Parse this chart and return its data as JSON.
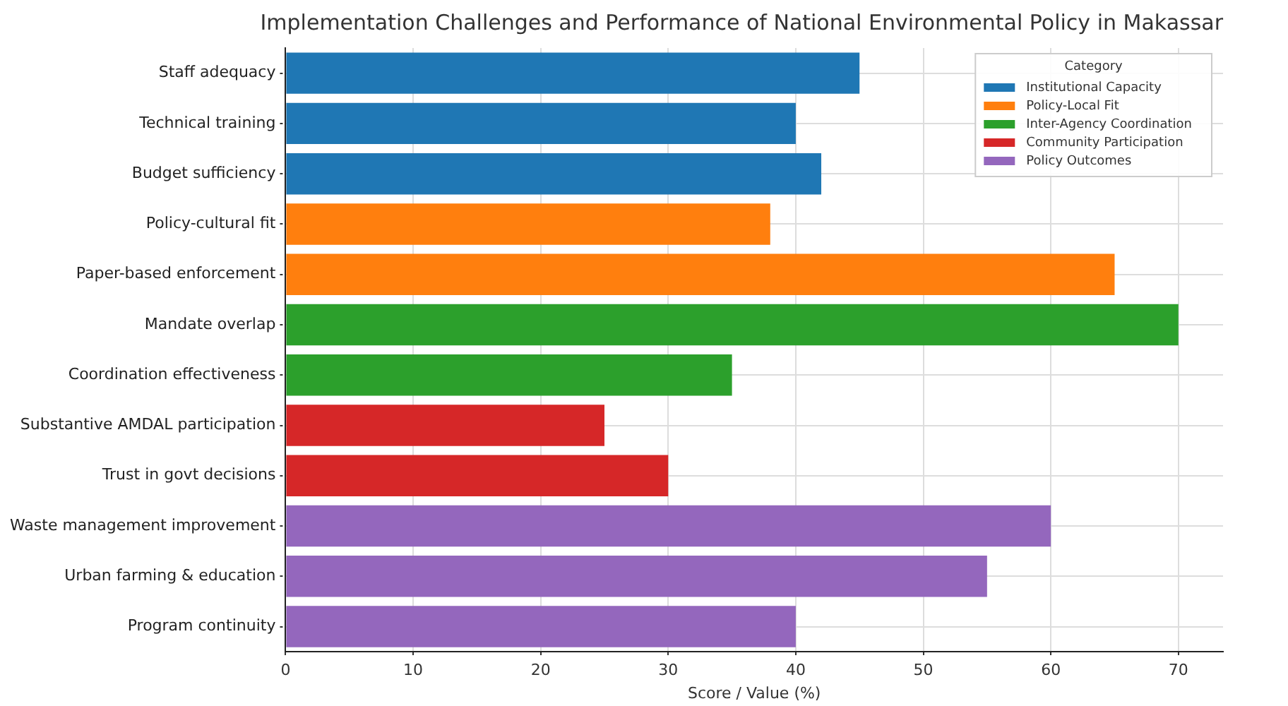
{
  "chart_data": {
    "type": "bar",
    "orientation": "horizontal",
    "title": "Implementation Challenges and Performance of National Environmental Policy in Makassar",
    "xlabel": "Score / Value (%)",
    "legend_title": "Category",
    "legend": "top right",
    "grid": true,
    "line_style": "dotted",
    "categories": [
      "Staff adequacy",
      "Technical training",
      "Budget sufficiency",
      "Policy-cultural fit",
      "Paper-based enforcement",
      "Mandate overlap",
      "Coordination effectiveness",
      "Substantive AMDAL participation",
      "Trust in govt decisions",
      "Waste management improvement",
      "Urban farming & education",
      "Program continuity"
    ],
    "xlim": [
      0,
      73.5
    ],
    "xticks": [
      0,
      10,
      20,
      30,
      40,
      50,
      60,
      70
    ],
    "series": [
      {
        "name": "Institutional Capacity",
        "color": "#1f77b4",
        "values": [
          45,
          40,
          42,
          null,
          null,
          null,
          null,
          null,
          null,
          null,
          null,
          null
        ]
      },
      {
        "name": "Policy-Local Fit",
        "color": "#ff7f0e",
        "values": [
          null,
          null,
          null,
          38,
          65,
          null,
          null,
          null,
          null,
          null,
          null,
          null
        ]
      },
      {
        "name": "Inter-Agency Coordination",
        "color": "#2ca02c",
        "values": [
          null,
          null,
          null,
          null,
          null,
          70,
          35,
          null,
          null,
          null,
          null,
          null
        ]
      },
      {
        "name": "Community Participation",
        "color": "#d62728",
        "values": [
          null,
          null,
          null,
          null,
          null,
          null,
          null,
          25,
          30,
          null,
          null,
          null
        ]
      },
      {
        "name": "Policy Outcomes",
        "color": "#9467bd",
        "values": [
          null,
          null,
          null,
          null,
          null,
          null,
          null,
          null,
          null,
          60,
          55,
          40
        ]
      }
    ]
  }
}
